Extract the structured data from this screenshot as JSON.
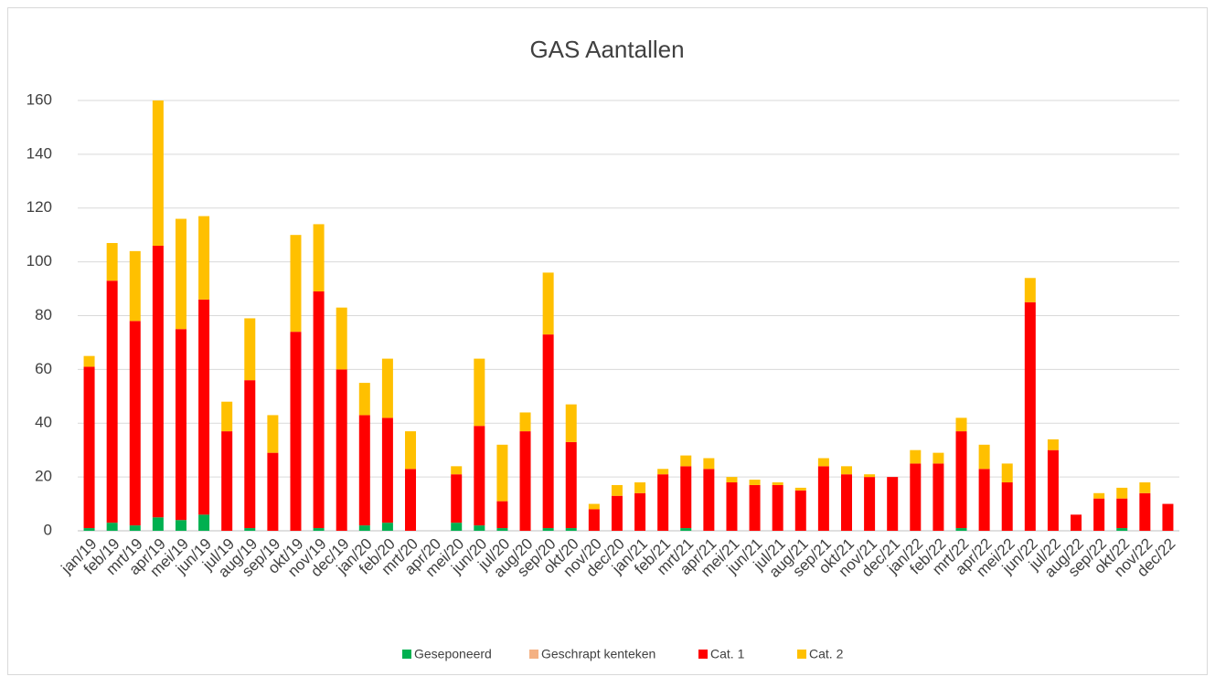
{
  "chart_data": {
    "type": "stacked_bar",
    "title": "GAS Aantallen",
    "categories": [
      "jan/19",
      "feb/19",
      "mrt/19",
      "apr/19",
      "mei/19",
      "jun/19",
      "jul/19",
      "aug/19",
      "sep/19",
      "okt/19",
      "nov/19",
      "dec/19",
      "jan/20",
      "feb/20",
      "mrt/20",
      "apr/20",
      "mei/20",
      "jun/20",
      "jul/20",
      "aug/20",
      "sep/20",
      "okt/20",
      "nov/20",
      "dec/20",
      "jan/21",
      "feb/21",
      "mrt/21",
      "apr/21",
      "mei/21",
      "jun/21",
      "jul/21",
      "aug/21",
      "sep/21",
      "okt/21",
      "nov/21",
      "dec/21",
      "jan/22",
      "feb/22",
      "mrt/22",
      "apr/22",
      "mei/22",
      "jun/22",
      "jul/22",
      "aug/22",
      "sep/22",
      "okt/22",
      "nov/22",
      "dec/22"
    ],
    "series": [
      {
        "name": "Geseponeerd",
        "color": "#00b050",
        "values": [
          1,
          3,
          2,
          5,
          4,
          6,
          0,
          1,
          0,
          0,
          1,
          0,
          2,
          3,
          0,
          0,
          3,
          2,
          1,
          0,
          1,
          1,
          0,
          0,
          0,
          0,
          1,
          0,
          0,
          0,
          0,
          0,
          0,
          0,
          0,
          0,
          0,
          0,
          1,
          0,
          0,
          0,
          0,
          0,
          0,
          1,
          0,
          0
        ]
      },
      {
        "name": "Geschrapt kenteken",
        "color": "#f4b183",
        "values": [
          0,
          0,
          0,
          0,
          0,
          0,
          0,
          0,
          0,
          0,
          0,
          0,
          0,
          0,
          0,
          0,
          0,
          0,
          0,
          0,
          0,
          0,
          0,
          0,
          0,
          0,
          0,
          0,
          0,
          0,
          0,
          0,
          0,
          0,
          0,
          0,
          0,
          0,
          0,
          0,
          0,
          0,
          0,
          0,
          0,
          0,
          0,
          0
        ]
      },
      {
        "name": "Cat. 1",
        "color": "#ff0000",
        "values": [
          60,
          90,
          76,
          101,
          71,
          80,
          37,
          55,
          29,
          74,
          88,
          60,
          41,
          39,
          23,
          0,
          18,
          37,
          10,
          37,
          72,
          32,
          8,
          13,
          14,
          21,
          23,
          23,
          18,
          17,
          17,
          15,
          24,
          21,
          20,
          20,
          25,
          25,
          36,
          23,
          18,
          85,
          30,
          6,
          12,
          11,
          14,
          10
        ]
      },
      {
        "name": "Cat. 2",
        "color": "#ffc000",
        "values": [
          4,
          14,
          26,
          54,
          41,
          31,
          11,
          23,
          14,
          36,
          25,
          23,
          12,
          22,
          14,
          0,
          3,
          25,
          21,
          7,
          23,
          14,
          2,
          4,
          4,
          2,
          4,
          4,
          2,
          2,
          1,
          1,
          3,
          3,
          1,
          0,
          5,
          4,
          5,
          9,
          7,
          9,
          4,
          0,
          2,
          4,
          4,
          0
        ]
      }
    ],
    "ylim": [
      0,
      160
    ],
    "yticks": [
      0,
      20,
      40,
      60,
      80,
      100,
      120,
      140,
      160
    ],
    "grid": true,
    "legend": "bottom"
  }
}
